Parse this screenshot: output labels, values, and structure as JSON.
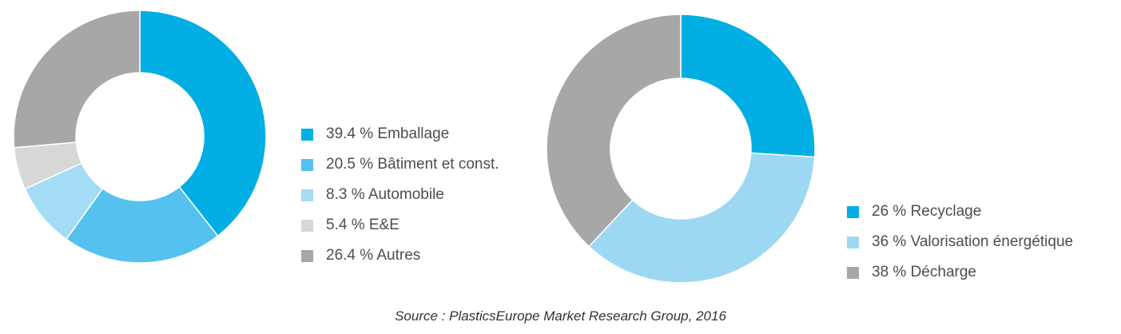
{
  "chart_data": [
    {
      "type": "pie",
      "slices": [
        {
          "label": "39.4 % Emballage",
          "value": 39.4,
          "color": "#00aee3"
        },
        {
          "label": "20.5 % Bâtiment et const.",
          "value": 20.5,
          "color": "#55c1ee"
        },
        {
          "label": "8.3 % Automobile",
          "value": 8.3,
          "color": "#a3dcf4"
        },
        {
          "label": "5.4 % E&E",
          "value": 5.4,
          "color": "#d7d7d7"
        },
        {
          "label": "26.4 % Autres",
          "value": 26.4,
          "color": "#a7a7a7"
        }
      ]
    },
    {
      "type": "pie",
      "slices": [
        {
          "label": "26 % Recyclage",
          "value": 26,
          "color": "#00aee3"
        },
        {
          "label": "36 % Valorisation énergétique",
          "value": 36,
          "color": "#9dd8f3"
        },
        {
          "label": "38 % Décharge",
          "value": 38,
          "color": "#a7a7a7"
        }
      ]
    }
  ],
  "source": "Source : PlasticsEurope Market Research Group, 2016"
}
